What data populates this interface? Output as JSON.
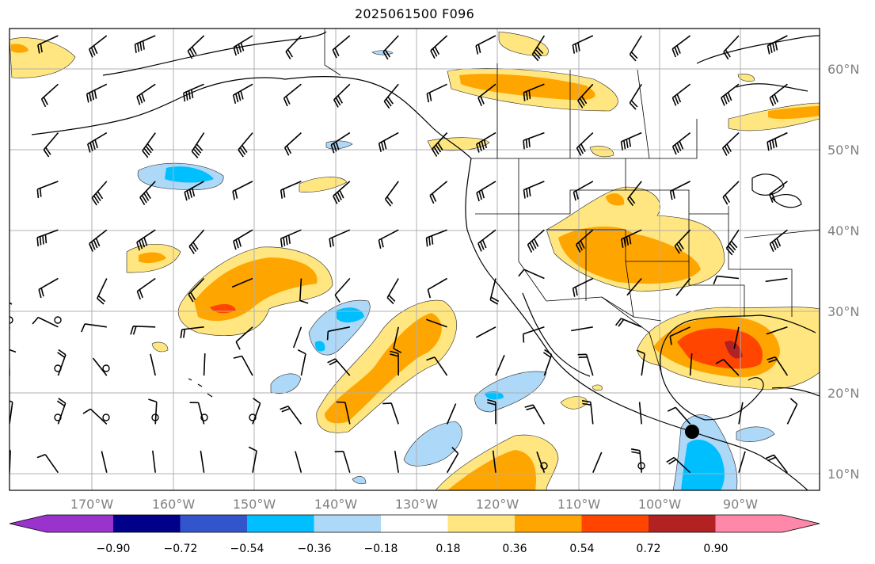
{
  "title": "2025061500 F096",
  "map": {
    "projection": "equirectangular",
    "lon_range": [
      -180,
      -80
    ],
    "lat_range": [
      8,
      65
    ],
    "lon_ticks": [
      "170°W",
      "160°W",
      "150°W",
      "140°W",
      "130°W",
      "120°W",
      "110°W",
      "100°W",
      "90°W"
    ],
    "lat_ticks": [
      "10°N",
      "20°N",
      "30°N",
      "40°N",
      "50°N",
      "60°N"
    ],
    "grid": true,
    "field": "filled contour anomaly with wind barbs",
    "marker": {
      "kind": "black-dot",
      "lon": -96,
      "lat": 15.5
    }
  },
  "colorbar": {
    "levels": [
      "−0.90",
      "−0.72",
      "−0.54",
      "−0.36",
      "−0.18",
      "0.18",
      "0.36",
      "0.54",
      "0.72",
      "0.90"
    ],
    "colors": [
      "#9933cc",
      "#00008b",
      "#3355cc",
      "#00bfff",
      "#add8f7",
      "#ffffff",
      "#ffe680",
      "#ffa500",
      "#ff4500",
      "#b22222",
      "#ff88aa"
    ],
    "extend": "both"
  }
}
